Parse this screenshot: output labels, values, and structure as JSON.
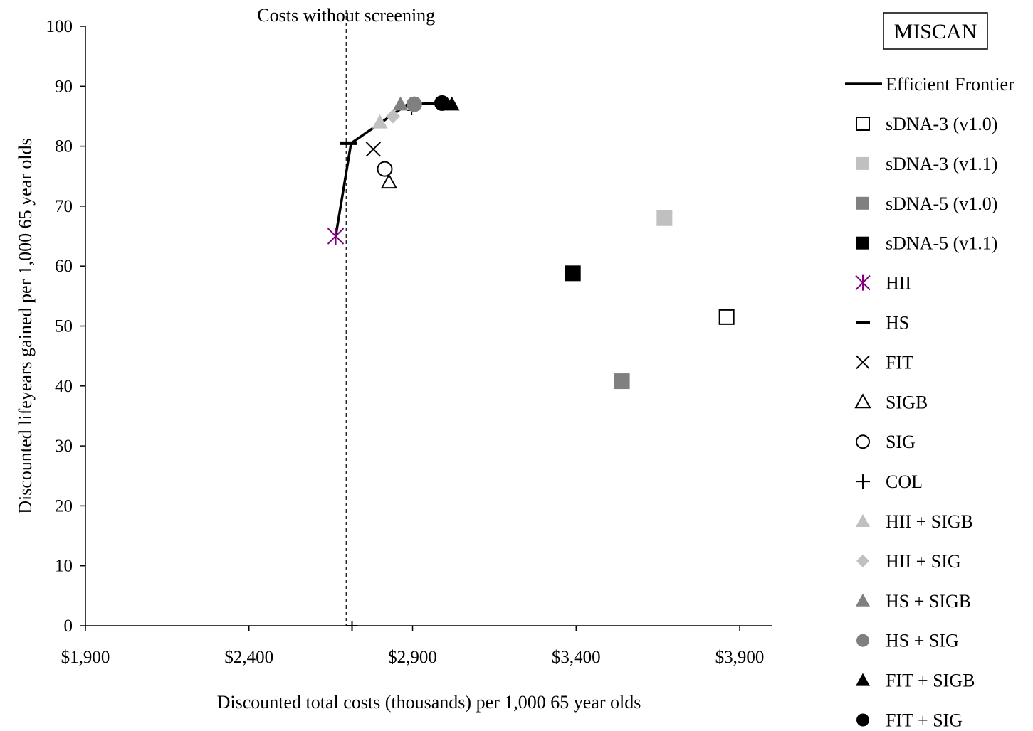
{
  "chart_data": {
    "type": "scatter",
    "title": "",
    "xlabel": "Discounted total costs (thousands) per 1,000 65 year olds",
    "ylabel": "Discounted lifeyears gained per 1,000 65 year olds",
    "xlim": [
      1900,
      4000
    ],
    "ylim": [
      0,
      100
    ],
    "x_ticks": [
      1900,
      2400,
      2900,
      3400,
      3900
    ],
    "x_tick_labels": [
      "$1,900",
      "$2,400",
      "$2,900",
      "$3,400",
      "$3,900"
    ],
    "y_ticks": [
      0,
      10,
      20,
      30,
      40,
      50,
      60,
      70,
      80,
      90,
      100
    ],
    "y_tick_labels": [
      "0",
      "10",
      "20",
      "30",
      "40",
      "50",
      "60",
      "70",
      "80",
      "90",
      "100"
    ],
    "grid": false,
    "legend_position": "right",
    "model_label": "MISCAN",
    "reference_line": {
      "x": 2697,
      "label": "Costs without screening"
    },
    "frontier": {
      "name": "Efficient Frontier",
      "x": [
        2665,
        2712,
        2885,
        2990,
        3020
      ],
      "y": [
        65,
        80.5,
        87,
        87.2,
        87.2
      ]
    },
    "series": [
      {
        "name": "sDNA-3 (v1.0)",
        "marker": "square-open",
        "color": "#000000",
        "x": [
          3860
        ],
        "y": [
          51.5
        ]
      },
      {
        "name": "sDNA-3 (v1.1)",
        "marker": "square",
        "color": "#c0c0c0",
        "x": [
          3670
        ],
        "y": [
          68
        ]
      },
      {
        "name": "sDNA-5 (v1.0)",
        "marker": "square",
        "color": "#808080",
        "x": [
          3540
        ],
        "y": [
          40.8
        ]
      },
      {
        "name": "sDNA-5 (v1.1)",
        "marker": "square",
        "color": "#000000",
        "x": [
          3390
        ],
        "y": [
          58.8
        ]
      },
      {
        "name": "HII",
        "marker": "asterisk",
        "color": "#800080",
        "x": [
          2665
        ],
        "y": [
          65
        ]
      },
      {
        "name": "HS",
        "marker": "dash",
        "color": "#000000",
        "x": [
          2705
        ],
        "y": [
          80.5
        ]
      },
      {
        "name": "FIT",
        "marker": "x",
        "color": "#000000",
        "x": [
          2780
        ],
        "y": [
          79.5
        ]
      },
      {
        "name": "SIGB",
        "marker": "triangle-open",
        "color": "#000000",
        "x": [
          2828
        ],
        "y": [
          74
        ]
      },
      {
        "name": "SIG",
        "marker": "circle-open",
        "color": "#000000",
        "x": [
          2815
        ],
        "y": [
          76.2
        ]
      },
      {
        "name": "COL",
        "marker": "plus",
        "color": "#000000",
        "x": [
          2715,
          2897
        ],
        "y": [
          0,
          86
        ]
      },
      {
        "name": "HII + SIGB",
        "marker": "triangle",
        "color": "#c0c0c0",
        "x": [
          2800
        ],
        "y": [
          84
        ]
      },
      {
        "name": "HII + SIG",
        "marker": "diamond",
        "color": "#c0c0c0",
        "x": [
          2840
        ],
        "y": [
          85
        ]
      },
      {
        "name": "HS + SIGB",
        "marker": "triangle",
        "color": "#808080",
        "x": [
          2863
        ],
        "y": [
          87
        ]
      },
      {
        "name": "HS + SIG",
        "marker": "circle",
        "color": "#808080",
        "x": [
          2905
        ],
        "y": [
          87
        ]
      },
      {
        "name": "FIT + SIGB",
        "marker": "triangle",
        "color": "#000000",
        "x": [
          3020
        ],
        "y": [
          87
        ]
      },
      {
        "name": "FIT + SIG",
        "marker": "circle",
        "color": "#000000",
        "x": [
          2990
        ],
        "y": [
          87.2
        ]
      }
    ]
  }
}
